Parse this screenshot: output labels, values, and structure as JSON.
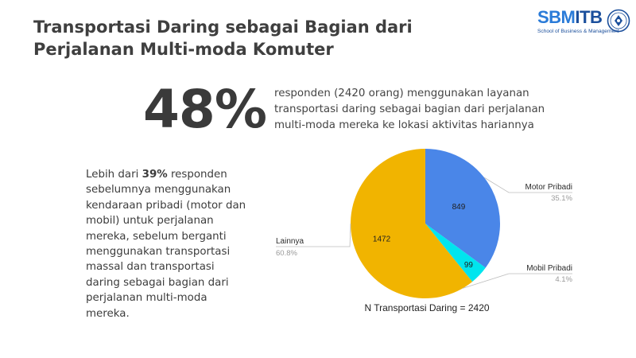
{
  "title": {
    "line1": "Transportasi Daring sebagai Bagian dari",
    "line2": "Perjalanan Multi-moda Komuter"
  },
  "logo": {
    "part1": "SBM",
    "part2": "ITB",
    "subtitle": "School of Business & Management"
  },
  "highlight": {
    "value": "48%",
    "lines": [
      "responden (2420 orang) menggunakan layanan",
      "transportasi daring sebagai bagian dari perjalanan",
      "multi-moda mereka ke lokasi aktivitas hariannya"
    ]
  },
  "side_text": {
    "line1_pre": "Lebih dari ",
    "line1_bold": "39%",
    "line1_post": " responden",
    "lines": [
      "sebelumnya menggunakan",
      "kendaraan pribadi (motor dan",
      "mobil) untuk perjalanan",
      "mereka, sebelum berganti",
      "menggunakan transportasi",
      "massal dan transportasi",
      "daring sebagai bagian dari",
      "perjalanan multi-moda",
      "mereka."
    ]
  },
  "colors": {
    "motor": "#4a86e8",
    "mobil": "#00e5ee",
    "lainnya": "#f1b400",
    "leader": "#bdbdbd"
  },
  "chart_data": {
    "type": "pie",
    "caption": "N Transportasi Daring = 2420",
    "slices": [
      {
        "label": "Motor Pribadi",
        "value": 849,
        "value_label": "849",
        "percent_label": "35.1%",
        "color": "#4a86e8"
      },
      {
        "label": "Mobil Pribadi",
        "value": 99,
        "value_label": "99",
        "percent_label": "4.1%",
        "color": "#00e5ee"
      },
      {
        "label": "Lainnya",
        "value": 1472,
        "value_label": "1472",
        "percent_label": "60.8%",
        "color": "#f1b400"
      }
    ],
    "start_angle_deg": 0,
    "direction": "clockwise",
    "legend_placement": "outside labels with leader lines"
  }
}
